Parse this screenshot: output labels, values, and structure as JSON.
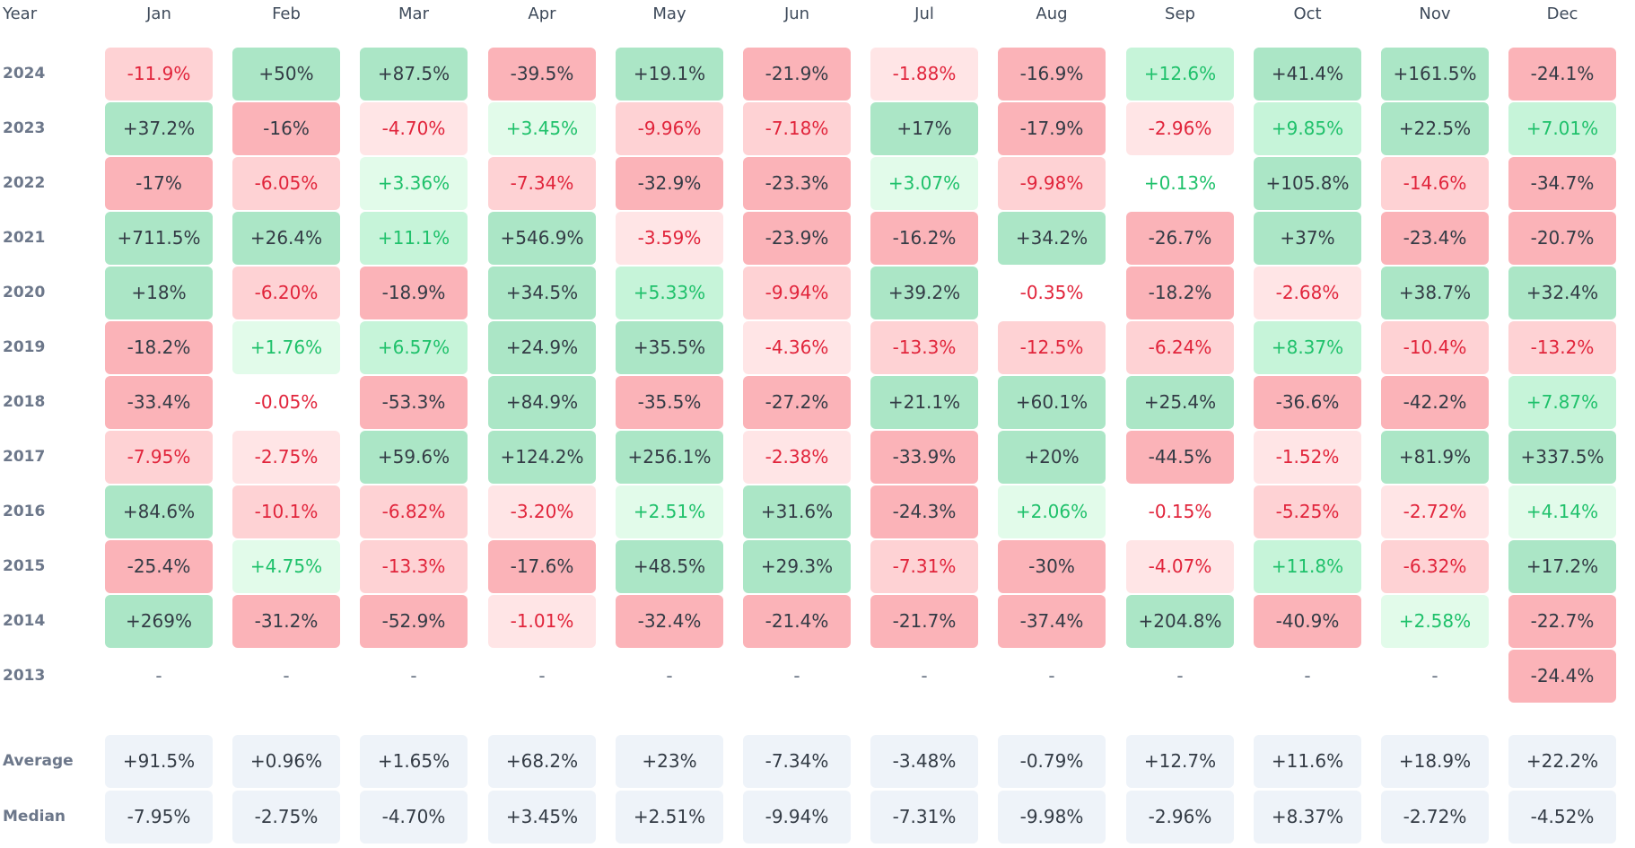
{
  "colors": {
    "strong_red_bg": "#fbb3b8",
    "medium_red_bg": "#fed2d4",
    "light_red_bg": "#ffe5e6",
    "strong_green_bg": "#abe6c6",
    "medium_green_bg": "#c6f4d9",
    "light_green_bg": "#e2fbea",
    "summary_bg": "#eef3f9",
    "dark_text": "#333b45",
    "red_text": "#e1243b",
    "green_text": "#1fc16b",
    "muted_text": "#657080"
  },
  "chart_data": {
    "type": "heatmap",
    "year_header": "Year",
    "columns": [
      "Jan",
      "Feb",
      "Mar",
      "Apr",
      "May",
      "Jun",
      "Jul",
      "Aug",
      "Sep",
      "Oct",
      "Nov",
      "Dec"
    ],
    "rows": [
      {
        "year": "2024",
        "values": [
          "-11.9%",
          "+50%",
          "+87.5%",
          "-39.5%",
          "+19.1%",
          "-21.9%",
          "-1.88%",
          "-16.9%",
          "+12.6%",
          "+41.4%",
          "+161.5%",
          "-24.1%"
        ]
      },
      {
        "year": "2023",
        "values": [
          "+37.2%",
          "-16%",
          "-4.70%",
          "+3.45%",
          "-9.96%",
          "-7.18%",
          "+17%",
          "-17.9%",
          "-2.96%",
          "+9.85%",
          "+22.5%",
          "+7.01%"
        ]
      },
      {
        "year": "2022",
        "values": [
          "-17%",
          "-6.05%",
          "+3.36%",
          "-7.34%",
          "-32.9%",
          "-23.3%",
          "+3.07%",
          "-9.98%",
          "+0.13%",
          "+105.8%",
          "-14.6%",
          "-34.7%"
        ]
      },
      {
        "year": "2021",
        "values": [
          "+711.5%",
          "+26.4%",
          "+11.1%",
          "+546.9%",
          "-3.59%",
          "-23.9%",
          "-16.2%",
          "+34.2%",
          "-26.7%",
          "+37%",
          "-23.4%",
          "-20.7%"
        ]
      },
      {
        "year": "2020",
        "values": [
          "+18%",
          "-6.20%",
          "-18.9%",
          "+34.5%",
          "+5.33%",
          "-9.94%",
          "+39.2%",
          "-0.35%",
          "-18.2%",
          "-2.68%",
          "+38.7%",
          "+32.4%"
        ]
      },
      {
        "year": "2019",
        "values": [
          "-18.2%",
          "+1.76%",
          "+6.57%",
          "+24.9%",
          "+35.5%",
          "-4.36%",
          "-13.3%",
          "-12.5%",
          "-6.24%",
          "+8.37%",
          "-10.4%",
          "-13.2%"
        ]
      },
      {
        "year": "2018",
        "values": [
          "-33.4%",
          "-0.05%",
          "-53.3%",
          "+84.9%",
          "-35.5%",
          "-27.2%",
          "+21.1%",
          "+60.1%",
          "+25.4%",
          "-36.6%",
          "-42.2%",
          "+7.87%"
        ]
      },
      {
        "year": "2017",
        "values": [
          "-7.95%",
          "-2.75%",
          "+59.6%",
          "+124.2%",
          "+256.1%",
          "-2.38%",
          "-33.9%",
          "+20%",
          "-44.5%",
          "-1.52%",
          "+81.9%",
          "+337.5%"
        ]
      },
      {
        "year": "2016",
        "values": [
          "+84.6%",
          "-10.1%",
          "-6.82%",
          "-3.20%",
          "+2.51%",
          "+31.6%",
          "-24.3%",
          "+2.06%",
          "-0.15%",
          "-5.25%",
          "-2.72%",
          "+4.14%"
        ]
      },
      {
        "year": "2015",
        "values": [
          "-25.4%",
          "+4.75%",
          "-13.3%",
          "-17.6%",
          "+48.5%",
          "+29.3%",
          "-7.31%",
          "-30%",
          "-4.07%",
          "+11.8%",
          "-6.32%",
          "+17.2%"
        ]
      },
      {
        "year": "2014",
        "values": [
          "+269%",
          "-31.2%",
          "-52.9%",
          "-1.01%",
          "-32.4%",
          "-21.4%",
          "-21.7%",
          "-37.4%",
          "+204.8%",
          "-40.9%",
          "+2.58%",
          "-22.7%"
        ]
      },
      {
        "year": "2013",
        "values": [
          "-",
          "-",
          "-",
          "-",
          "-",
          "-",
          "-",
          "-",
          "-",
          "-",
          "-",
          "-24.4%"
        ]
      }
    ],
    "summary_rows": [
      {
        "label": "Average",
        "values": [
          "+91.5%",
          "+0.96%",
          "+1.65%",
          "+68.2%",
          "+23%",
          "-7.34%",
          "-3.48%",
          "-0.79%",
          "+12.7%",
          "+11.6%",
          "+18.9%",
          "+22.2%"
        ]
      },
      {
        "label": "Median",
        "values": [
          "-7.95%",
          "-2.75%",
          "-4.70%",
          "+3.45%",
          "+2.51%",
          "-9.94%",
          "-7.31%",
          "-9.98%",
          "-2.96%",
          "+8.37%",
          "-2.72%",
          "-4.52%"
        ]
      }
    ]
  }
}
